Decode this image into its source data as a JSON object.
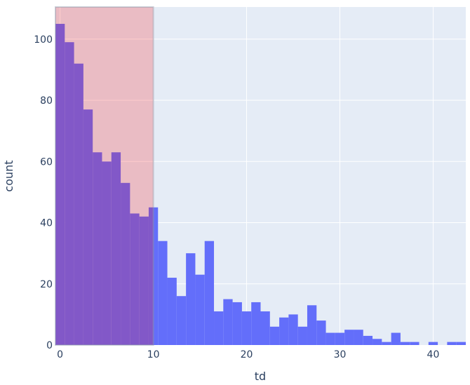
{
  "chart_data": {
    "type": "histogram",
    "x_label": "td",
    "y_label": "count",
    "bins": [
      -0.5,
      0.5,
      1.5,
      2.5,
      3.5,
      4.5,
      5.5,
      6.5,
      7.5,
      8.5,
      9.5,
      10.5,
      11.5,
      12.5,
      13.5,
      14.5,
      15.5,
      16.5,
      17.5,
      18.5,
      19.5,
      20.5,
      21.5,
      22.5,
      23.5,
      24.5,
      25.5,
      26.5,
      27.5,
      28.5,
      29.5,
      30.5,
      31.5,
      32.5,
      33.5,
      34.5,
      35.5,
      36.5,
      37.5,
      38.5,
      39.5,
      40.5,
      41.5,
      42.5,
      43.5
    ],
    "values": [
      105,
      99,
      92,
      77,
      63,
      60,
      63,
      53,
      43,
      42,
      45,
      34,
      22,
      16,
      30,
      23,
      34,
      11,
      15,
      14,
      11,
      14,
      11,
      6,
      9,
      10,
      6,
      13,
      8,
      4,
      4,
      5,
      5,
      3,
      2,
      1,
      4,
      1,
      1,
      0,
      1,
      0,
      1,
      1
    ],
    "color": "#636efa",
    "xlim": [
      -0.5,
      43.5
    ],
    "ylim": [
      0,
      110.5
    ],
    "xticks": [
      0,
      10,
      20,
      30,
      40
    ],
    "yticks": [
      0,
      20,
      40,
      60,
      80,
      100
    ],
    "grid": true,
    "shaded_region": {
      "x0": -0.5,
      "x1": 10,
      "color": "red",
      "opacity": 0.2
    }
  }
}
